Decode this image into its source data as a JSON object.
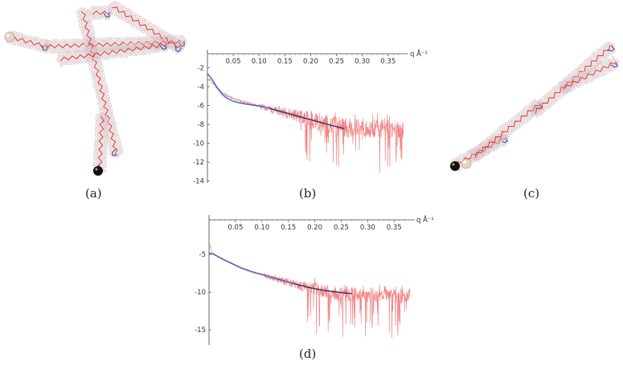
{
  "panels": {
    "a": {
      "caption": "(a)"
    },
    "b": {
      "caption": "(b)"
    },
    "c": {
      "caption": "(c)"
    },
    "d": {
      "caption": "(d)"
    }
  },
  "chart_data": [
    {
      "id": "b",
      "type": "line",
      "xlabel": "q Å⁻¹",
      "ylabel": "",
      "x_ticks": [
        0.05,
        0.1,
        0.15,
        0.2,
        0.25,
        0.3,
        0.35
      ],
      "x_tick_labels": [
        "0.05",
        "0.10",
        "0.15",
        "0.20",
        "0.25",
        "0.30",
        "0.35"
      ],
      "y_ticks": [
        -2,
        -4,
        -6,
        -8,
        -10,
        -12,
        -14
      ],
      "y_tick_labels": [
        "-2",
        "-4",
        "-6",
        "-8",
        "-10",
        "-12",
        "-14"
      ],
      "xlim": [
        0.0,
        0.38
      ],
      "ylim": [
        -14.2,
        -0.6
      ],
      "colors": {
        "experimental": "#f07a7a",
        "model_blue": "#3d63c6",
        "model_dark": "#2a2f6a"
      },
      "series": [
        {
          "style": "noisy-experimental",
          "x": [
            0.0,
            0.005,
            0.01,
            0.02,
            0.03,
            0.04,
            0.05,
            0.07,
            0.09,
            0.11,
            0.13,
            0.15,
            0.17,
            0.19,
            0.21,
            0.23,
            0.25,
            0.27,
            0.29,
            0.31,
            0.33,
            0.35,
            0.37
          ],
          "y": [
            -3.2,
            -3.3,
            -3.6,
            -4.2,
            -4.7,
            -5.0,
            -5.3,
            -5.6,
            -5.9,
            -6.2,
            -6.5,
            -6.7,
            -7.0,
            -7.3,
            -7.6,
            -7.9,
            -8.2,
            -8.3,
            -8.4,
            -8.4,
            -8.4,
            -8.5,
            -8.5
          ]
        },
        {
          "style": "smooth-blue",
          "x": [
            0.0,
            0.01,
            0.02,
            0.03,
            0.04,
            0.05,
            0.06,
            0.08,
            0.1,
            0.12
          ],
          "y": [
            -2.6,
            -3.3,
            -4.2,
            -4.9,
            -5.3,
            -5.55,
            -5.7,
            -5.9,
            -6.05,
            -6.25
          ]
        },
        {
          "style": "smooth-dark",
          "x": [
            0.12,
            0.15,
            0.18,
            0.21,
            0.24,
            0.265
          ],
          "y": [
            -6.3,
            -6.75,
            -7.2,
            -7.65,
            -8.1,
            -8.45
          ]
        }
      ]
    },
    {
      "id": "d",
      "type": "line",
      "xlabel": "q Å⁻¹",
      "ylabel": "",
      "x_ticks": [
        0.05,
        0.1,
        0.15,
        0.2,
        0.25,
        0.3,
        0.35
      ],
      "x_tick_labels": [
        "0.05",
        "0.10",
        "0.15",
        "0.20",
        "0.25",
        "0.30",
        "0.35"
      ],
      "y_ticks": [
        -5,
        -10,
        -15
      ],
      "y_tick_labels": [
        "-5",
        "-10",
        "-15"
      ],
      "xlim": [
        0.0,
        0.38
      ],
      "ylim": [
        -17.0,
        -0.4
      ],
      "colors": {
        "experimental": "#f07a7a",
        "model_blue": "#3d63c6",
        "model_dark": "#2a2f6a"
      },
      "series": [
        {
          "style": "noisy-experimental",
          "x": [
            0.0,
            0.005,
            0.01,
            0.02,
            0.04,
            0.06,
            0.08,
            0.1,
            0.12,
            0.14,
            0.16,
            0.18,
            0.2,
            0.22,
            0.24,
            0.26,
            0.28,
            0.3,
            0.32,
            0.34,
            0.36,
            0.37
          ],
          "y": [
            -3.5,
            -4.5,
            -5.0,
            -5.4,
            -6.1,
            -6.8,
            -7.3,
            -7.7,
            -8.1,
            -8.5,
            -8.9,
            -9.3,
            -9.6,
            -9.9,
            -10.1,
            -10.2,
            -10.3,
            -10.4,
            -10.4,
            -10.5,
            -10.5,
            -10.5
          ]
        },
        {
          "style": "smooth-blue",
          "x": [
            0.0,
            0.01,
            0.02,
            0.04,
            0.06,
            0.08,
            0.1,
            0.12,
            0.14,
            0.16
          ],
          "y": [
            -4.8,
            -5.0,
            -5.4,
            -6.1,
            -6.75,
            -7.25,
            -7.65,
            -8.05,
            -8.45,
            -8.85
          ]
        },
        {
          "style": "smooth-dark",
          "x": [
            0.16,
            0.19,
            0.22,
            0.25,
            0.27
          ],
          "y": [
            -8.85,
            -9.4,
            -9.8,
            -10.05,
            -10.2
          ]
        }
      ]
    }
  ],
  "molecules": {
    "a": {
      "colors": {
        "backbone": "#d23030",
        "envelope": "#c9a7ab",
        "beads": "#d8c5c8",
        "linker": "#2c3fa6",
        "sphere_light": "#e8d4c4",
        "sphere_dark": "#111111"
      },
      "segments": [
        {
          "from": [
            12,
            46
          ],
          "to": [
            58,
            58
          ]
        },
        {
          "from": [
            58,
            58
          ],
          "to": [
            228,
            52
          ]
        },
        {
          "from": [
            103,
            14
          ],
          "to": [
            145,
            192
          ]
        },
        {
          "from": [
            115,
            16
          ],
          "to": [
            135,
            16
          ]
        },
        {
          "from": [
            140,
            8
          ],
          "to": [
            224,
            60
          ]
        },
        {
          "from": [
            75,
            74
          ],
          "to": [
            205,
            56
          ]
        },
        {
          "from": [
            127,
            145
          ],
          "to": [
            124,
            212
          ]
        }
      ],
      "end_spheres": [
        {
          "at": [
            12,
            46
          ],
          "tone": "light"
        },
        {
          "at": [
            122,
            213
          ],
          "tone": "dark"
        }
      ]
    },
    "c": {
      "colors": {
        "backbone": "#d23030",
        "envelope": "#c9a7ab",
        "beads": "#d8c5c8",
        "linker": "#2c3fa6",
        "sphere_light": "#e8d4c4",
        "sphere_dark": "#111111"
      },
      "segments": [
        {
          "from": [
            566,
            206
          ],
          "to": [
            628,
            172
          ]
        },
        {
          "from": [
            590,
            195
          ],
          "to": [
            670,
            130
          ]
        },
        {
          "from": [
            665,
            140
          ],
          "to": [
            760,
            58
          ]
        },
        {
          "from": [
            700,
            110
          ],
          "to": [
            765,
            78
          ]
        }
      ],
      "end_spheres": [
        {
          "at": [
            566,
            207
          ],
          "tone": "dark"
        },
        {
          "at": [
            580,
            204
          ],
          "tone": "light"
        }
      ]
    }
  }
}
